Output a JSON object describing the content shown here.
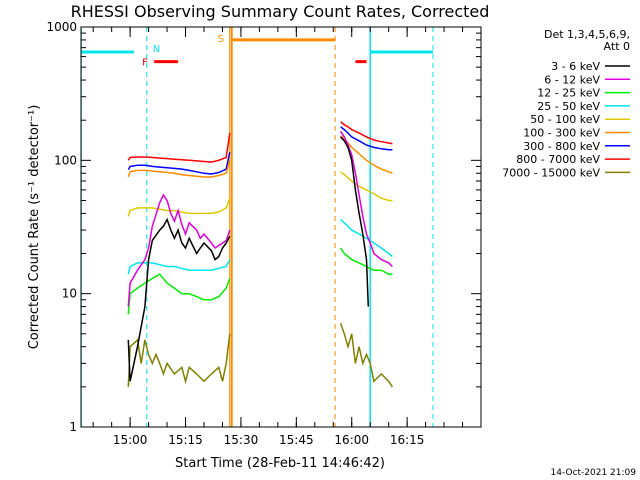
{
  "chart_data": {
    "type": "line",
    "title": "RHESSI Observing Summary Count Rates, Corrected",
    "xlabel": "Start Time (28-Feb-11 14:46:42)",
    "ylabel": "Corrected Count Rate (s⁻¹ detector⁻¹)",
    "xlim": [
      "14:46:42",
      "16:35:00"
    ],
    "ylim": [
      1,
      1000
    ],
    "yscale": "log",
    "x_ticks": [
      "15:00",
      "15:15",
      "15:30",
      "15:45",
      "16:00",
      "16:15"
    ],
    "y_ticks": [
      "1",
      "10",
      "100",
      "1000"
    ],
    "legend_header": [
      "Det 1,3,4,5,6,9,",
      "Att 0"
    ],
    "legend_position": "right",
    "footer": "14-Oct-2021 21:09",
    "flag_labels": {
      "N": "N",
      "F": "F",
      "S": "S"
    },
    "flags": {
      "night": {
        "color": "#00e5ee",
        "level": 650,
        "intervals": [
          [
            "14:46:42",
            "15:01:00"
          ],
          [
            "16:05:00",
            "16:22:00"
          ]
        ],
        "edges": [
          "14:46:42",
          "15:04:30",
          "16:05:00",
          "16:22:00"
        ]
      },
      "flare": {
        "color": "#ff0000",
        "level": 550,
        "intervals": [
          [
            "15:06:30",
            "15:13:00"
          ],
          [
            "16:01:00",
            "16:04:00"
          ]
        ]
      },
      "saa": {
        "color": "#ff8c00",
        "level": 800,
        "intervals": [
          [
            "15:27:30",
            "15:55:30"
          ]
        ],
        "edges": [
          "15:27:30",
          "15:55:30"
        ]
      }
    },
    "series": [
      {
        "name": "3 - 6 keV",
        "color": "#000000",
        "x": [
          "14:59:30",
          "15:00:00",
          "15:02:00",
          "15:04:00",
          "15:05:00",
          "15:06:00",
          "15:08:00",
          "15:09:00",
          "15:10:00",
          "15:11:00",
          "15:12:00",
          "15:13:00",
          "15:14:00",
          "15:15:00",
          "15:16:00",
          "15:18:00",
          "15:19:00",
          "15:20:00",
          "15:22:00",
          "15:23:00",
          "15:24:00",
          "15:25:00",
          "15:26:00",
          "15:27:00",
          "15:57:00",
          "15:58:00",
          "15:59:00",
          "16:00:00",
          "16:01:00",
          "16:02:00",
          "16:03:00",
          "16:04:00",
          "16:04:30"
        ],
        "y": [
          4.5,
          2.2,
          4,
          8,
          18,
          25,
          30,
          32,
          36,
          30,
          26,
          30,
          24,
          22,
          26,
          20,
          22,
          24,
          21,
          18,
          19,
          22,
          24,
          27,
          150,
          140,
          125,
          100,
          60,
          40,
          28,
          18,
          8
        ]
      },
      {
        "name": "6 - 12 keV",
        "color": "#e000e0",
        "x": [
          "14:59:30",
          "15:00:00",
          "15:02:00",
          "15:04:00",
          "15:05:00",
          "15:06:00",
          "15:08:00",
          "15:09:00",
          "15:10:00",
          "15:11:00",
          "15:12:00",
          "15:13:00",
          "15:14:00",
          "15:15:00",
          "15:16:00",
          "15:18:00",
          "15:19:00",
          "15:20:00",
          "15:22:00",
          "15:23:00",
          "15:24:00",
          "15:25:00",
          "15:26:00",
          "15:27:00",
          "15:57:00",
          "15:58:00",
          "15:59:00",
          "16:00:00",
          "16:01:00",
          "16:02:00",
          "16:03:00",
          "16:04:00",
          "16:05:00",
          "16:06:00",
          "16:08:00",
          "16:10:00",
          "16:11:00"
        ],
        "y": [
          8,
          12,
          15,
          18,
          22,
          32,
          48,
          55,
          50,
          40,
          35,
          42,
          33,
          28,
          34,
          30,
          26,
          28,
          24,
          22,
          23,
          24,
          25,
          30,
          165,
          150,
          130,
          110,
          80,
          55,
          38,
          28,
          24,
          20,
          18,
          17,
          16
        ]
      },
      {
        "name": "12 - 25 keV",
        "color": "#00ee00",
        "x": [
          "14:59:30",
          "15:00:00",
          "15:02:00",
          "15:04:00",
          "15:06:00",
          "15:08:00",
          "15:10:00",
          "15:12:00",
          "15:14:00",
          "15:16:00",
          "15:18:00",
          "15:20:00",
          "15:22:00",
          "15:24:00",
          "15:26:00",
          "15:27:00",
          "15:57:00",
          "15:58:00",
          "15:59:00",
          "16:00:00",
          "16:02:00",
          "16:04:00",
          "16:06:00",
          "16:08:00",
          "16:10:00",
          "16:11:00"
        ],
        "y": [
          7,
          10,
          11,
          12,
          13,
          14,
          12,
          11,
          10,
          10,
          9.5,
          9,
          9,
          9.5,
          11,
          13,
          22,
          20,
          19,
          18,
          17,
          16,
          15,
          15,
          14,
          14
        ]
      },
      {
        "name": "25 - 50 keV",
        "color": "#00e5ee",
        "x": [
          "14:59:30",
          "15:00:00",
          "15:02:00",
          "15:04:00",
          "15:06:00",
          "15:08:00",
          "15:10:00",
          "15:12:00",
          "15:14:00",
          "15:16:00",
          "15:18:00",
          "15:20:00",
          "15:22:00",
          "15:24:00",
          "15:26:00",
          "15:27:00",
          "15:57:00",
          "15:58:00",
          "15:59:00",
          "16:00:00",
          "16:02:00",
          "16:04:00",
          "16:06:00",
          "16:08:00",
          "16:10:00",
          "16:11:00"
        ],
        "y": [
          14,
          16,
          17,
          17,
          17,
          16.5,
          16,
          16,
          15.5,
          15,
          15,
          15,
          15,
          15.5,
          16,
          18,
          36,
          34,
          32,
          30,
          28,
          26,
          24,
          22,
          20,
          19
        ]
      },
      {
        "name": "50 - 100 keV",
        "color": "#e0c800",
        "x": [
          "14:59:30",
          "15:00:00",
          "15:02:00",
          "15:04:00",
          "15:06:00",
          "15:08:00",
          "15:10:00",
          "15:12:00",
          "15:14:00",
          "15:16:00",
          "15:18:00",
          "15:20:00",
          "15:22:00",
          "15:24:00",
          "15:26:00",
          "15:27:00",
          "15:57:00",
          "15:58:00",
          "15:59:00",
          "16:00:00",
          "16:02:00",
          "16:04:00",
          "16:06:00",
          "16:08:00",
          "16:10:00",
          "16:11:00"
        ],
        "y": [
          38,
          42,
          44,
          44,
          44,
          43,
          42,
          42,
          41,
          40,
          40,
          40,
          40,
          41,
          44,
          52,
          82,
          78,
          74,
          70,
          64,
          60,
          56,
          52,
          50,
          50
        ]
      },
      {
        "name": "100 - 300 keV",
        "color": "#ff8c00",
        "x": [
          "14:59:30",
          "15:00:00",
          "15:02:00",
          "15:04:00",
          "15:06:00",
          "15:08:00",
          "15:10:00",
          "15:12:00",
          "15:14:00",
          "15:16:00",
          "15:18:00",
          "15:20:00",
          "15:22:00",
          "15:24:00",
          "15:26:00",
          "15:27:00",
          "15:57:00",
          "15:58:00",
          "15:59:00",
          "16:00:00",
          "16:02:00",
          "16:04:00",
          "16:06:00",
          "16:08:00",
          "16:10:00",
          "16:11:00"
        ],
        "y": [
          75,
          82,
          84,
          84,
          83,
          82,
          81,
          80,
          78,
          77,
          76,
          75,
          75,
          77,
          80,
          100,
          152,
          145,
          135,
          125,
          112,
          100,
          92,
          86,
          82,
          80
        ]
      },
      {
        "name": "300 - 800 keV",
        "color": "#0000ff",
        "x": [
          "14:59:30",
          "15:00:00",
          "15:02:00",
          "15:04:00",
          "15:06:00",
          "15:08:00",
          "15:10:00",
          "15:12:00",
          "15:14:00",
          "15:16:00",
          "15:18:00",
          "15:20:00",
          "15:22:00",
          "15:24:00",
          "15:26:00",
          "15:27:00",
          "15:57:00",
          "15:58:00",
          "15:59:00",
          "16:00:00",
          "16:02:00",
          "16:04:00",
          "16:06:00",
          "16:08:00",
          "16:10:00",
          "16:11:00"
        ],
        "y": [
          85,
          90,
          92,
          92,
          90,
          89,
          88,
          87,
          86,
          84,
          82,
          80,
          79,
          81,
          86,
          115,
          178,
          170,
          160,
          150,
          140,
          130,
          125,
          122,
          120,
          120
        ]
      },
      {
        "name": "800 - 7000 keV",
        "color": "#ff0000",
        "x": [
          "14:59:30",
          "15:00:00",
          "15:02:00",
          "15:04:00",
          "15:06:00",
          "15:08:00",
          "15:10:00",
          "15:12:00",
          "15:14:00",
          "15:16:00",
          "15:18:00",
          "15:20:00",
          "15:22:00",
          "15:24:00",
          "15:26:00",
          "15:27:00",
          "15:57:00",
          "15:58:00",
          "15:59:00",
          "16:00:00",
          "16:02:00",
          "16:04:00",
          "16:06:00",
          "16:08:00",
          "16:10:00",
          "16:11:00"
        ],
        "y": [
          100,
          105,
          106,
          106,
          105,
          104,
          103,
          102,
          101,
          100,
          99,
          98,
          97,
          100,
          105,
          160,
          195,
          185,
          178,
          170,
          160,
          150,
          142,
          138,
          135,
          133
        ]
      },
      {
        "name": "7000 - 15000 keV",
        "color": "#808000",
        "x": [
          "14:59:30",
          "15:00:00",
          "15:02:00",
          "15:03:00",
          "15:04:00",
          "15:05:00",
          "15:06:00",
          "15:07:00",
          "15:08:00",
          "15:09:00",
          "15:10:00",
          "15:12:00",
          "15:14:00",
          "15:15:00",
          "15:16:00",
          "15:18:00",
          "15:20:00",
          "15:22:00",
          "15:24:00",
          "15:25:00",
          "15:26:00",
          "15:27:00",
          "15:57:00",
          "15:58:00",
          "15:59:00",
          "16:00:00",
          "16:01:00",
          "16:02:00",
          "16:03:00",
          "16:04:00",
          "16:05:00",
          "16:06:00",
          "16:08:00",
          "16:10:00",
          "16:11:00"
        ],
        "y": [
          2,
          4,
          4.5,
          3,
          4.5,
          3.5,
          3,
          3.5,
          3,
          2.5,
          3,
          2.5,
          2.8,
          2.2,
          2.8,
          2.5,
          2.2,
          2.5,
          2.8,
          2.2,
          3,
          5,
          6,
          5,
          4,
          5,
          3,
          4,
          3,
          3.5,
          3,
          2.2,
          2.5,
          2.2,
          2
        ]
      }
    ]
  }
}
